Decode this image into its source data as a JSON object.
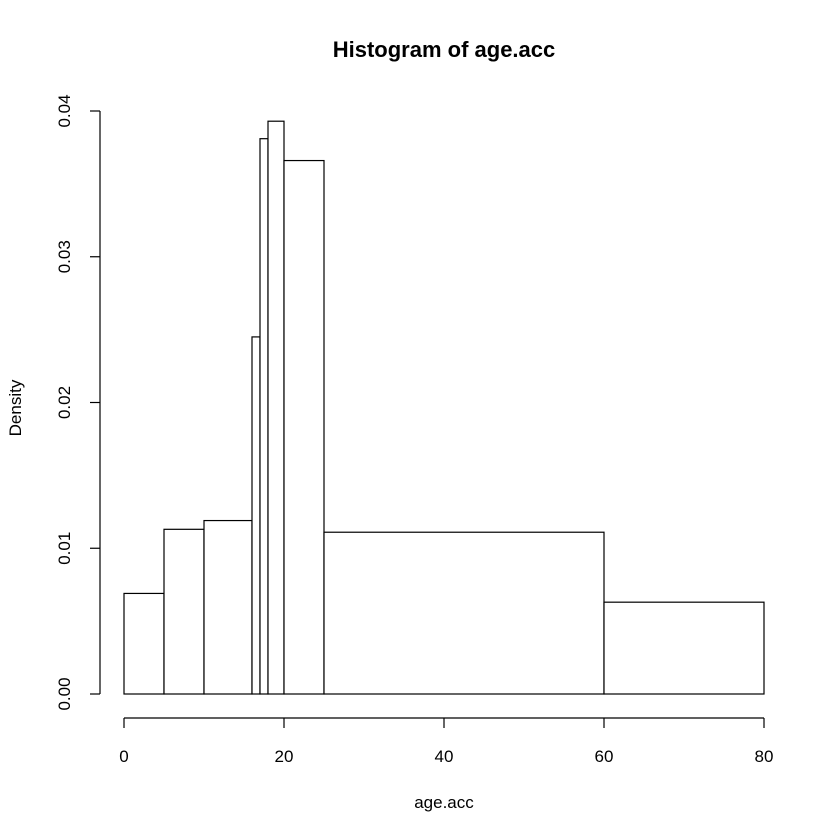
{
  "chart_data": {
    "type": "bar",
    "subtype": "histogram",
    "title": "Histogram of age.acc",
    "xlabel": "age.acc",
    "ylabel": "Density",
    "xlim": [
      0,
      80
    ],
    "ylim": [
      0,
      0.04
    ],
    "x_ticks": [
      0,
      20,
      40,
      60,
      80
    ],
    "x_tick_labels": [
      "0",
      "20",
      "40",
      "60",
      "80"
    ],
    "y_ticks": [
      0,
      0.01,
      0.02,
      0.03,
      0.04
    ],
    "y_tick_labels": [
      "0.00",
      "0.01",
      "0.02",
      "0.03",
      "0.04"
    ],
    "bins": [
      {
        "start": 0,
        "end": 5,
        "density": 0.0069
      },
      {
        "start": 5,
        "end": 10,
        "density": 0.0113
      },
      {
        "start": 10,
        "end": 16,
        "density": 0.0119
      },
      {
        "start": 16,
        "end": 17,
        "density": 0.0245
      },
      {
        "start": 17,
        "end": 18,
        "density": 0.0381
      },
      {
        "start": 18,
        "end": 20,
        "density": 0.0393
      },
      {
        "start": 20,
        "end": 25,
        "density": 0.0366
      },
      {
        "start": 25,
        "end": 60,
        "density": 0.0111
      },
      {
        "start": 60,
        "end": 80,
        "density": 0.0063
      }
    ],
    "grid": false,
    "legend": "none",
    "colors": {
      "bar_fill": "#ffffff",
      "bar_stroke": "#000000"
    }
  }
}
